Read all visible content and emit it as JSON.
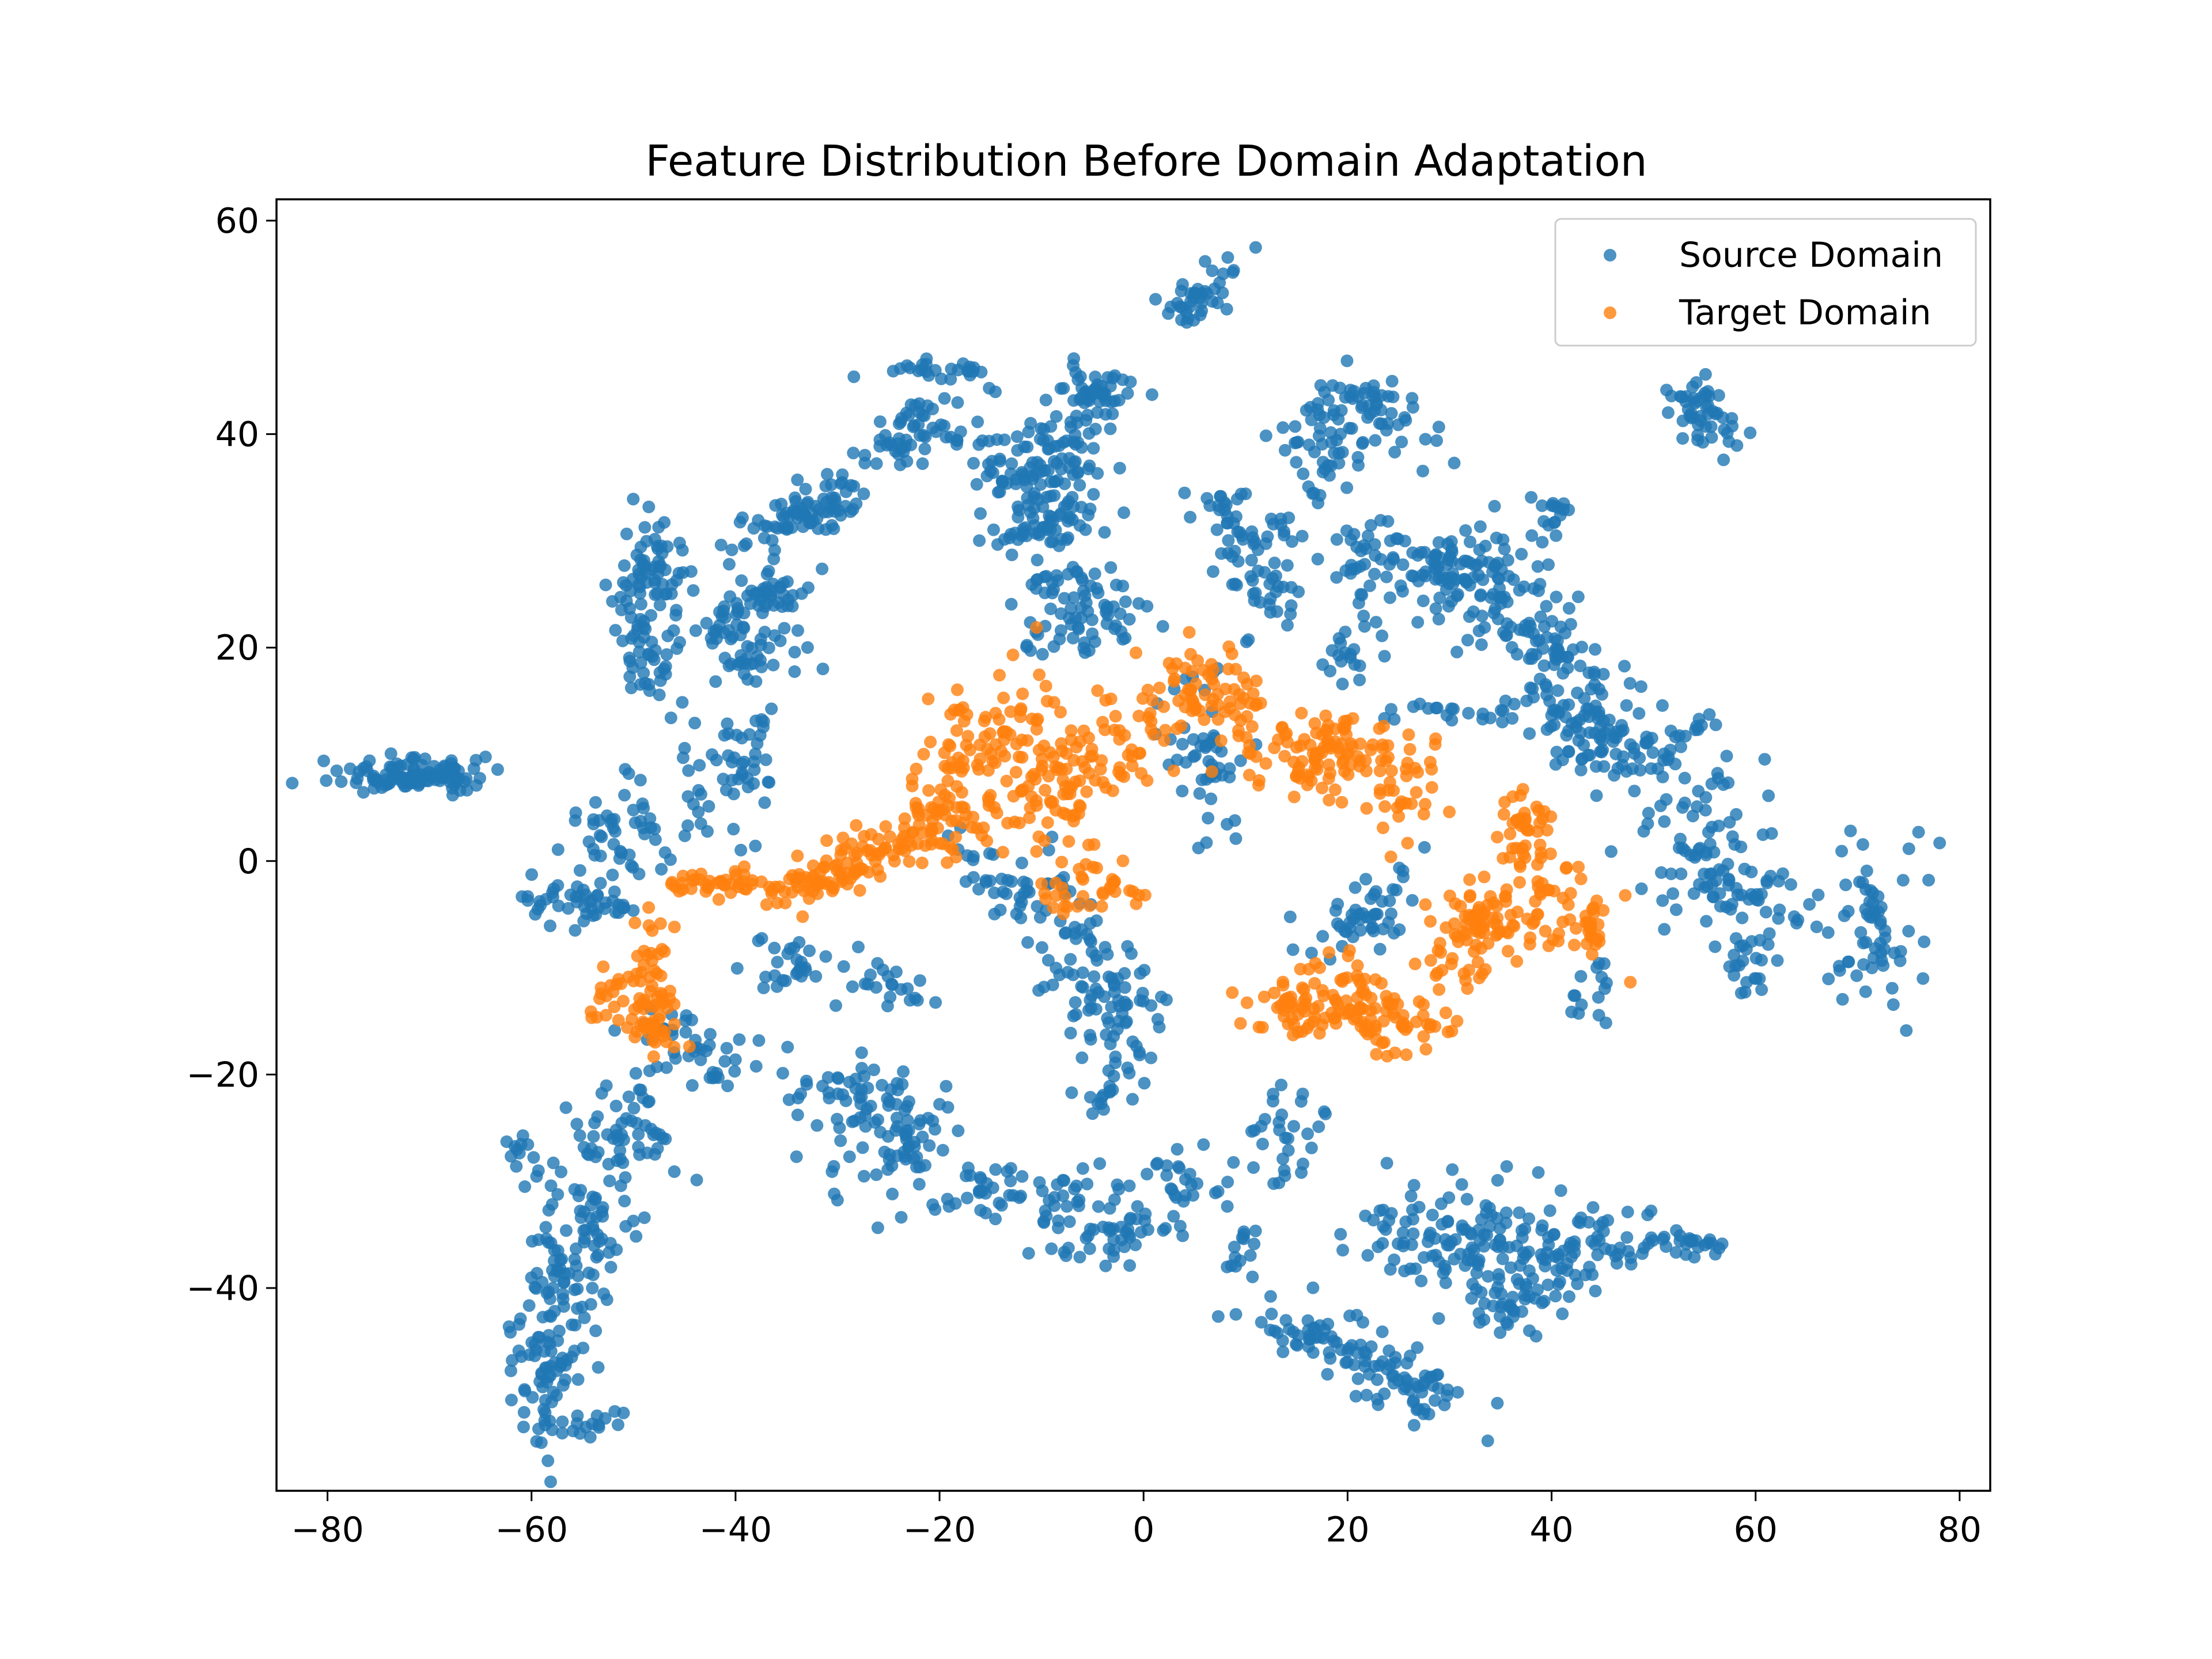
{
  "chart_data": {
    "type": "scatter",
    "title": "Feature Distribution Before Domain Adaptation",
    "xlabel": "",
    "ylabel": "",
    "xlim": [
      -85,
      83
    ],
    "ylim": [
      -59,
      62
    ],
    "xticks": [
      -80,
      -60,
      -40,
      -20,
      0,
      20,
      40,
      60,
      80
    ],
    "yticks": [
      60,
      40,
      20,
      0,
      -20,
      -40
    ],
    "xtick_labels": [
      "−80",
      "−60",
      "−40",
      "−20",
      "0",
      "20",
      "40",
      "60",
      "80"
    ],
    "ytick_labels": [
      "60",
      "40",
      "20",
      "0",
      "−20",
      "−40"
    ],
    "grid": false,
    "legend_position": "top-right",
    "series": [
      {
        "name": "Source Domain",
        "color": "#1f77b4",
        "clusters": [
          {
            "x": -71,
            "y": 8,
            "sx": 3.6,
            "sy": 0.8,
            "angle": 0.05,
            "n": 110
          },
          {
            "x": -48,
            "y": 27,
            "sx": 1.6,
            "sy": 2.5,
            "angle": 0,
            "n": 60
          },
          {
            "x": -49,
            "y": 20,
            "sx": 1.5,
            "sy": 3.0,
            "angle": 0.3,
            "n": 50
          },
          {
            "x": -32,
            "y": 33,
            "sx": 4.0,
            "sy": 1.2,
            "angle": 0.4,
            "n": 80
          },
          {
            "x": -38,
            "y": 24,
            "sx": 3.5,
            "sy": 1.5,
            "angle": 0.5,
            "n": 70
          },
          {
            "x": -22,
            "y": 40,
            "sx": 3.5,
            "sy": 1.5,
            "angle": 0.4,
            "n": 60
          },
          {
            "x": -20,
            "y": 46,
            "sx": 2.5,
            "sy": 0.5,
            "angle": 0,
            "n": 25
          },
          {
            "x": -12,
            "y": 36,
            "sx": 2.5,
            "sy": 2.5,
            "angle": 0,
            "n": 70
          },
          {
            "x": -7,
            "y": 38,
            "sx": 2.5,
            "sy": 3.0,
            "angle": 0,
            "n": 60
          },
          {
            "x": -5,
            "y": 44,
            "sx": 1.8,
            "sy": 1.2,
            "angle": -0.4,
            "n": 40
          },
          {
            "x": -10,
            "y": 31,
            "sx": 3.0,
            "sy": 1.0,
            "angle": 0.2,
            "n": 40
          },
          {
            "x": -6,
            "y": 22,
            "sx": 3.5,
            "sy": 1.5,
            "angle": 0.2,
            "n": 50
          },
          {
            "x": -8,
            "y": 26,
            "sx": 2.5,
            "sy": 1.0,
            "angle": 0,
            "n": 30
          },
          {
            "x": 5,
            "y": 53,
            "sx": 2.5,
            "sy": 1.3,
            "angle": 0.5,
            "n": 40
          },
          {
            "x": 10,
            "y": 32,
            "sx": 3.0,
            "sy": 1.5,
            "angle": -0.2,
            "n": 40
          },
          {
            "x": 12,
            "y": 26,
            "sx": 2.5,
            "sy": 2.0,
            "angle": 0,
            "n": 40
          },
          {
            "x": 18,
            "y": 39,
            "sx": 2.0,
            "sy": 2.5,
            "angle": 0,
            "n": 50
          },
          {
            "x": 23,
            "y": 42,
            "sx": 3.0,
            "sy": 1.5,
            "angle": -0.5,
            "n": 50
          },
          {
            "x": 22,
            "y": 27,
            "sx": 2.0,
            "sy": 2.5,
            "angle": 0,
            "n": 40
          },
          {
            "x": 20,
            "y": 19,
            "sx": 1.2,
            "sy": 1.0,
            "angle": 0,
            "n": 15
          },
          {
            "x": 29,
            "y": 28,
            "sx": 3.0,
            "sy": 1.5,
            "angle": 0,
            "n": 50
          },
          {
            "x": 34,
            "y": 26,
            "sx": 3.0,
            "sy": 3.0,
            "angle": 0,
            "n": 70
          },
          {
            "x": 38,
            "y": 22,
            "sx": 3.0,
            "sy": 2.0,
            "angle": -0.3,
            "n": 40
          },
          {
            "x": 42,
            "y": 17,
            "sx": 3.0,
            "sy": 2.0,
            "angle": -0.3,
            "n": 40
          },
          {
            "x": 45,
            "y": 11,
            "sx": 4.0,
            "sy": 2.0,
            "angle": -0.3,
            "n": 60
          },
          {
            "x": 50,
            "y": 11,
            "sx": 4.0,
            "sy": 2.0,
            "angle": -0.3,
            "n": 50
          },
          {
            "x": 55,
            "y": 2,
            "sx": 3.0,
            "sy": 3.0,
            "angle": 0,
            "n": 60
          },
          {
            "x": 60,
            "y": -4,
            "sx": 4.0,
            "sy": 1.5,
            "angle": -0.2,
            "n": 40
          },
          {
            "x": 59,
            "y": -10,
            "sx": 1.5,
            "sy": 2.0,
            "angle": 0,
            "n": 25
          },
          {
            "x": 72,
            "y": -6,
            "sx": 2.5,
            "sy": 4.0,
            "angle": 0,
            "n": 60
          },
          {
            "x": 55,
            "y": 42,
            "sx": 2.0,
            "sy": 1.5,
            "angle": -0.6,
            "n": 50
          },
          {
            "x": 40,
            "y": 32,
            "sx": 1.0,
            "sy": 1.2,
            "angle": 0,
            "n": 15
          },
          {
            "x": 44,
            "y": -13,
            "sx": 2.0,
            "sy": 2.0,
            "angle": 0,
            "n": 15
          },
          {
            "x": 30,
            "y": 14,
            "sx": 3.0,
            "sy": 0.5,
            "angle": 0,
            "n": 20
          },
          {
            "x": -51,
            "y": 2,
            "sx": 4.0,
            "sy": 2.5,
            "angle": 0.4,
            "n": 60
          },
          {
            "x": -55,
            "y": -4,
            "sx": 2.5,
            "sy": 1.0,
            "angle": 0,
            "n": 40
          },
          {
            "x": -40,
            "y": 10,
            "sx": 3.0,
            "sy": 3.0,
            "angle": 0.5,
            "n": 50
          },
          {
            "x": -38,
            "y": 19,
            "sx": 3.0,
            "sy": 1.5,
            "angle": 0.3,
            "n": 30
          },
          {
            "x": -13,
            "y": -2,
            "sx": 3.0,
            "sy": 2.0,
            "angle": -0.4,
            "n": 40
          },
          {
            "x": -6,
            "y": -9,
            "sx": 2.5,
            "sy": 4.0,
            "angle": 0.3,
            "n": 60
          },
          {
            "x": -2,
            "y": -14,
            "sx": 2.0,
            "sy": 3.5,
            "angle": 0.2,
            "n": 40
          },
          {
            "x": 6,
            "y": 10,
            "sx": 2.0,
            "sy": 4.0,
            "angle": 0.2,
            "n": 50
          },
          {
            "x": 22,
            "y": -5,
            "sx": 3.5,
            "sy": 1.5,
            "angle": 0.5,
            "n": 50
          },
          {
            "x": -34,
            "y": -10,
            "sx": 2.5,
            "sy": 1.5,
            "angle": 0,
            "n": 30
          },
          {
            "x": -24,
            "y": -12,
            "sx": 2.5,
            "sy": 1.0,
            "angle": 0,
            "n": 20
          },
          {
            "x": -47,
            "y": -15,
            "sx": 2.0,
            "sy": 1.0,
            "angle": 0,
            "n": 15
          },
          {
            "x": -42,
            "y": -19,
            "sx": 2.5,
            "sy": 1.5,
            "angle": 0,
            "n": 30
          },
          {
            "x": -50,
            "y": -26,
            "sx": 2.5,
            "sy": 3.0,
            "angle": 0.5,
            "n": 50
          },
          {
            "x": -54,
            "y": -32,
            "sx": 2.0,
            "sy": 4.0,
            "angle": 0.3,
            "n": 50
          },
          {
            "x": -57,
            "y": -40,
            "sx": 1.5,
            "sy": 4.0,
            "angle": 0.3,
            "n": 60
          },
          {
            "x": -59,
            "y": -48,
            "sx": 1.5,
            "sy": 3.5,
            "angle": 0,
            "n": 60
          },
          {
            "x": -55,
            "y": -53,
            "sx": 2.0,
            "sy": 0.8,
            "angle": 0.2,
            "n": 20
          },
          {
            "x": -61,
            "y": -27,
            "sx": 0.8,
            "sy": 1.0,
            "angle": 0,
            "n": 10
          },
          {
            "x": -27,
            "y": -22,
            "sx": 3.5,
            "sy": 2.0,
            "angle": -0.3,
            "n": 60
          },
          {
            "x": -24,
            "y": -27,
            "sx": 3.0,
            "sy": 2.5,
            "angle": -0.3,
            "n": 50
          },
          {
            "x": -15,
            "y": -31,
            "sx": 2.5,
            "sy": 1.2,
            "angle": 0,
            "n": 30
          },
          {
            "x": -8,
            "y": -31,
            "sx": 2.0,
            "sy": 1.0,
            "angle": 0,
            "n": 20
          },
          {
            "x": -5,
            "y": -35,
            "sx": 3.5,
            "sy": 1.5,
            "angle": 0,
            "n": 40
          },
          {
            "x": -3,
            "y": -22,
            "sx": 2.0,
            "sy": 0.8,
            "angle": 0,
            "n": 15
          },
          {
            "x": 4,
            "y": -32,
            "sx": 3.0,
            "sy": 2.5,
            "angle": 0,
            "n": 40
          },
          {
            "x": 10,
            "y": -37,
            "sx": 2.0,
            "sy": 2.0,
            "angle": 0,
            "n": 15
          },
          {
            "x": 14,
            "y": -26,
            "sx": 2.0,
            "sy": 2.5,
            "angle": 0,
            "n": 30
          },
          {
            "x": 18,
            "y": -45,
            "sx": 4.0,
            "sy": 1.5,
            "angle": -0.3,
            "n": 60
          },
          {
            "x": 26,
            "y": -49,
            "sx": 3.5,
            "sy": 1.3,
            "angle": -0.3,
            "n": 50
          },
          {
            "x": 27,
            "y": -35,
            "sx": 3.0,
            "sy": 2.5,
            "angle": 0,
            "n": 50
          },
          {
            "x": 34,
            "y": -36,
            "sx": 3.5,
            "sy": 3.0,
            "angle": 0,
            "n": 70
          },
          {
            "x": 40,
            "y": -37,
            "sx": 3.0,
            "sy": 2.5,
            "angle": 0,
            "n": 50
          },
          {
            "x": 46,
            "y": -36,
            "sx": 2.0,
            "sy": 1.5,
            "angle": 0,
            "n": 25
          },
          {
            "x": 53,
            "y": -36,
            "sx": 2.5,
            "sy": 0.8,
            "angle": 0,
            "n": 30
          },
          {
            "x": 36,
            "y": -42,
            "sx": 3.0,
            "sy": 1.2,
            "angle": 0,
            "n": 25
          }
        ]
      },
      {
        "name": "Target Domain",
        "color": "#ff7f0e",
        "clusters": [
          {
            "x": -48,
            "y": -10,
            "sx": 1.0,
            "sy": 3.0,
            "angle": 0,
            "n": 40
          },
          {
            "x": -48,
            "y": -15,
            "sx": 1.5,
            "sy": 1.5,
            "angle": 0,
            "n": 30
          },
          {
            "x": -52,
            "y": -13,
            "sx": 1.5,
            "sy": 1.5,
            "angle": 0,
            "n": 20
          },
          {
            "x": -42,
            "y": -2,
            "sx": 2.5,
            "sy": 0.6,
            "angle": 0,
            "n": 40
          },
          {
            "x": -33,
            "y": -2,
            "sx": 3.0,
            "sy": 1.0,
            "angle": 0.1,
            "n": 50
          },
          {
            "x": -26,
            "y": 1,
            "sx": 3.0,
            "sy": 1.2,
            "angle": 0.2,
            "n": 50
          },
          {
            "x": -20,
            "y": 4,
            "sx": 2.5,
            "sy": 2.0,
            "angle": 0.3,
            "n": 50
          },
          {
            "x": -17,
            "y": 10,
            "sx": 3.0,
            "sy": 2.5,
            "angle": 0,
            "n": 60
          },
          {
            "x": -10,
            "y": 12,
            "sx": 2.5,
            "sy": 3.0,
            "angle": 0,
            "n": 50
          },
          {
            "x": -9,
            "y": 6,
            "sx": 3.0,
            "sy": 2.0,
            "angle": 0.4,
            "n": 50
          },
          {
            "x": -2,
            "y": 10,
            "sx": 3.0,
            "sy": 3.0,
            "angle": 0,
            "n": 40
          },
          {
            "x": 4,
            "y": 16,
            "sx": 2.5,
            "sy": 2.0,
            "angle": 0,
            "n": 40
          },
          {
            "x": 9,
            "y": 15,
            "sx": 2.0,
            "sy": 2.0,
            "angle": 0,
            "n": 30
          },
          {
            "x": 14,
            "y": 10,
            "sx": 3.5,
            "sy": 2.0,
            "angle": 0,
            "n": 60
          },
          {
            "x": 19,
            "y": 11,
            "sx": 2.0,
            "sy": 2.0,
            "angle": 0,
            "n": 40
          },
          {
            "x": 25,
            "y": 7,
            "sx": 1.8,
            "sy": 3.0,
            "angle": 0,
            "n": 40
          },
          {
            "x": -7,
            "y": -2,
            "sx": 2.5,
            "sy": 1.5,
            "angle": 0.4,
            "n": 30
          },
          {
            "x": -2,
            "y": -3,
            "sx": 1.5,
            "sy": 0.6,
            "angle": 0,
            "n": 10
          },
          {
            "x": 15,
            "y": -14,
            "sx": 3.0,
            "sy": 1.2,
            "angle": 0,
            "n": 50
          },
          {
            "x": 20,
            "y": -12,
            "sx": 3.0,
            "sy": 2.0,
            "angle": 0,
            "n": 50
          },
          {
            "x": 25,
            "y": -15,
            "sx": 2.5,
            "sy": 1.5,
            "angle": 0.4,
            "n": 40
          },
          {
            "x": 30,
            "y": -10,
            "sx": 2.0,
            "sy": 1.0,
            "angle": 0,
            "n": 15
          },
          {
            "x": 33,
            "y": -6,
            "sx": 2.5,
            "sy": 1.5,
            "angle": 0.3,
            "n": 60
          },
          {
            "x": 38,
            "y": -4,
            "sx": 3.0,
            "sy": 3.0,
            "angle": 0.4,
            "n": 50
          },
          {
            "x": 37,
            "y": 3,
            "sx": 1.5,
            "sy": 2.0,
            "angle": 0,
            "n": 40
          },
          {
            "x": 44,
            "y": -6,
            "sx": 0.8,
            "sy": 1.5,
            "angle": 0,
            "n": 20
          }
        ]
      }
    ]
  }
}
